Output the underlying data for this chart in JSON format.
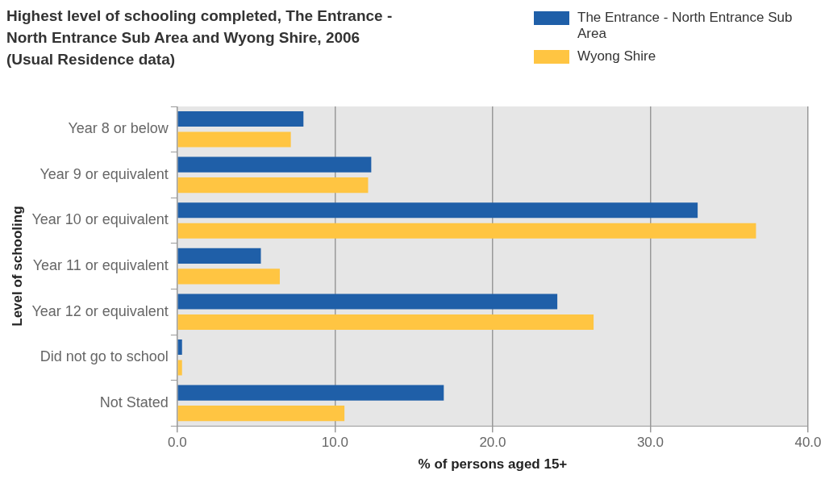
{
  "chart_data": {
    "type": "bar",
    "orientation": "horizontal",
    "title": "Highest level of schooling completed,  The Entrance - North Entrance Sub Area and Wyong Shire, 2006 (Usual Residence data)",
    "xlabel": "% of persons aged 15+",
    "ylabel": "Level of schooling",
    "categories": [
      "Year 8 or below",
      "Year 9 or equivalent",
      "Year 10 or equivalent",
      "Year 11 or equivalent",
      "Year 12 or equivalent",
      "Did not go to school",
      "Not Stated"
    ],
    "series": [
      {
        "name": "The Entrance - North Entrance Sub Area",
        "color": "#1f5fa8",
        "values": [
          8.0,
          12.3,
          33.0,
          5.3,
          24.1,
          0.3,
          16.9
        ]
      },
      {
        "name": "Wyong Shire",
        "color": "#ffc542",
        "values": [
          7.2,
          12.1,
          36.7,
          6.5,
          26.4,
          0.3,
          10.6
        ]
      }
    ],
    "xlim": [
      0,
      40
    ],
    "xticks": [
      {
        "value": 0,
        "label": "0.0"
      },
      {
        "value": 10,
        "label": "10.0"
      },
      {
        "value": 20,
        "label": "20.0"
      },
      {
        "value": 30,
        "label": "30.0"
      },
      {
        "value": 40,
        "label": "40.0"
      }
    ],
    "grid": "x",
    "legend": "top right"
  }
}
